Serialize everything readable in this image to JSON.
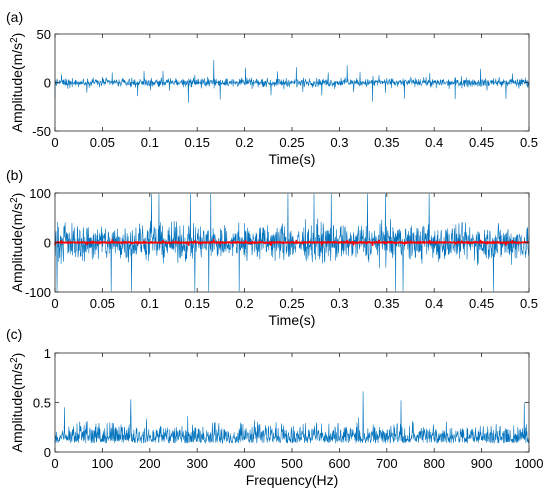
{
  "chart_data": [
    {
      "type": "line",
      "panel_label": "(a)",
      "xlabel": "Time(s)",
      "ylabel_main": "Amplitude(m/s",
      "ylabel_sup": "2",
      "ylabel_end": ")",
      "xlim": [
        0,
        0.5
      ],
      "ylim": [
        -50,
        50
      ],
      "xticks": [
        0,
        0.05,
        0.1,
        0.15,
        0.2,
        0.25,
        0.3,
        0.35,
        0.4,
        0.45,
        0.5
      ],
      "xtick_labels": [
        "0",
        "0.05",
        "0.1",
        "0.15",
        "0.2",
        "0.25",
        "0.3",
        "0.35",
        "0.4",
        "0.45",
        "0.5"
      ],
      "yticks": [
        -50,
        0,
        50
      ],
      "ytick_labels": [
        "-50",
        "0",
        "50"
      ],
      "grid": false,
      "series": [
        {
          "color": "#0072BD",
          "signal": "periodic impulses with random background noise",
          "noise_amplitude": 6,
          "impulse_period": 0.0067,
          "impulse_peak": 22
        }
      ]
    },
    {
      "type": "line",
      "panel_label": "(b)",
      "xlabel": "Time(s)",
      "ylabel_main": "Amplitude(m/s",
      "ylabel_sup": "2",
      "ylabel_end": ")",
      "xlim": [
        0,
        0.5
      ],
      "ylim": [
        -100,
        100
      ],
      "xticks": [
        0,
        0.05,
        0.1,
        0.15,
        0.2,
        0.25,
        0.3,
        0.35,
        0.4,
        0.45,
        0.5
      ],
      "xtick_labels": [
        "0",
        "0.05",
        "0.1",
        "0.15",
        "0.2",
        "0.25",
        "0.3",
        "0.35",
        "0.4",
        "0.45",
        "0.5"
      ],
      "yticks": [
        -100,
        0,
        100
      ],
      "ytick_labels": [
        "-100",
        "0",
        "100"
      ],
      "grid": false,
      "series": [
        {
          "color": "#0072BD",
          "signal": "strong random noise",
          "noise_amplitude": 45,
          "peak": 98
        },
        {
          "color": "#FF0000",
          "signal": "periodic impulses (small, near zero)",
          "noise_amplitude": 2,
          "impulse_period": 0.0067,
          "impulse_peak": 6
        }
      ]
    },
    {
      "type": "line",
      "panel_label": "(c)",
      "xlabel": "Frequency(Hz)",
      "ylabel_main": "Amplitude(m/s",
      "ylabel_sup": "2",
      "ylabel_end": ")",
      "xlim": [
        0,
        1000
      ],
      "ylim": [
        0,
        1
      ],
      "xticks": [
        0,
        100,
        200,
        300,
        400,
        500,
        600,
        700,
        800,
        900,
        1000
      ],
      "xtick_labels": [
        "0",
        "100",
        "200",
        "300",
        "400",
        "500",
        "600",
        "700",
        "800",
        "900",
        "1000"
      ],
      "yticks": [
        0,
        0.5,
        1
      ],
      "ytick_labels": [
        "0",
        "0.5",
        "1"
      ],
      "grid": false,
      "series": [
        {
          "color": "#0072BD",
          "signal": "noisy amplitude spectrum",
          "typical_level": 0.15,
          "max_level": 0.35,
          "peaks": [
            {
              "x": 20,
              "y": 0.45
            },
            {
              "x": 160,
              "y": 0.53
            },
            {
              "x": 280,
              "y": 0.36
            },
            {
              "x": 650,
              "y": 0.61
            },
            {
              "x": 730,
              "y": 0.52
            },
            {
              "x": 990,
              "y": 0.5
            }
          ]
        }
      ]
    }
  ]
}
